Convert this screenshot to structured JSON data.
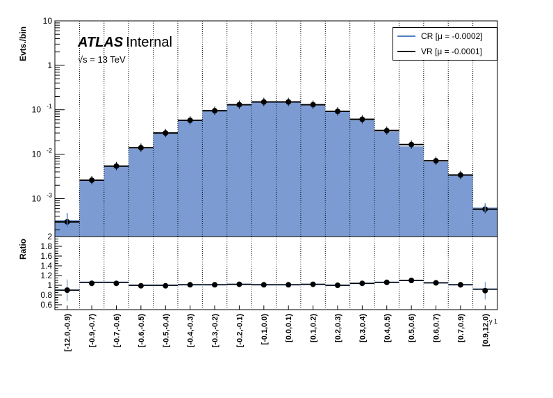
{
  "header": {
    "atlas_label": "ATLAS",
    "status_label": "Internal",
    "energy_label": "√s = 13 TeV"
  },
  "legend": {
    "cr_label": "CR [μ = -0.0002]",
    "vr_label": "VR [μ = -0.0001]",
    "cr_color": "#4f7fbf",
    "vr_color": "#000000"
  },
  "colors": {
    "fill": "#7b9bd2",
    "line": "#000000",
    "cr_error": "#4f7fbf"
  },
  "chart_data": [
    {
      "type": "bar",
      "panel": "main",
      "ylabel": "Evts./bin",
      "ylim": [
        0.00014,
        10
      ],
      "yscale": "log",
      "y_tick_labels": [
        "10",
        "1",
        "10^-1",
        "10^-2",
        "10^-3"
      ],
      "categories": [
        "[-12.0,-0.9)",
        "[-0.9,-0.7)",
        "[-0.7,-0.6)",
        "[-0.6,-0.5)",
        "[-0.5,-0.4)",
        "[-0.4,-0.3)",
        "[-0.3,-0.2)",
        "[-0.2,-0.1)",
        "[-0.1,0.0)",
        "[0.0,0.1)",
        "[0.1,0.2)",
        "[0.2,0.3)",
        "[0.3,0.4)",
        "[0.4,0.5)",
        "[0.5,0.6)",
        "[0.6,0.7)",
        "[0.7,0.9)",
        "[0.9,12.0)"
      ],
      "series": [
        {
          "name": "CR [μ = -0.0002]",
          "values": [
            0.00033,
            0.0025,
            0.0055,
            0.0135,
            0.03,
            0.058,
            0.095,
            0.13,
            0.15,
            0.15,
            0.13,
            0.092,
            0.058,
            0.032,
            0.015,
            0.0067,
            0.0033,
            0.00063
          ]
        },
        {
          "name": "VR [μ = -0.0001]",
          "values": [
            0.0003,
            0.0026,
            0.0054,
            0.014,
            0.03,
            0.058,
            0.095,
            0.13,
            0.15,
            0.15,
            0.13,
            0.092,
            0.061,
            0.034,
            0.0165,
            0.0071,
            0.0034,
            0.00058
          ]
        }
      ],
      "grid": "vertical dotted"
    },
    {
      "type": "scatter",
      "panel": "ratio",
      "ylabel": "Ratio",
      "xlabel": "γ 1",
      "ylim": [
        0.5,
        2
      ],
      "y_tick_labels": [
        "2",
        "1.8",
        "1.6",
        "1.4",
        "1.2",
        "1",
        "0.8",
        "0.6"
      ],
      "categories": [
        "[-12.0,-0.9)",
        "[-0.9,-0.7)",
        "[-0.7,-0.6)",
        "[-0.6,-0.5)",
        "[-0.5,-0.4)",
        "[-0.4,-0.3)",
        "[-0.3,-0.2)",
        "[-0.2,-0.1)",
        "[-0.1,0.0)",
        "[0.0,0.1)",
        "[0.1,0.2)",
        "[0.2,0.3)",
        "[0.3,0.4)",
        "[0.4,0.5)",
        "[0.5,0.6)",
        "[0.6,0.7)",
        "[0.7,0.9)",
        "[0.9,12.0)"
      ],
      "ratio_points": [
        0.9,
        1.04,
        1.04,
        0.99,
        0.99,
        1.01,
        1.01,
        1.02,
        1.01,
        1.01,
        1.02,
        1.0,
        1.04,
        1.06,
        1.1,
        1.05,
        1.01,
        0.89
      ],
      "ratio_line": [
        0.9,
        1.06,
        1.06,
        1.0,
        1.0,
        1.01,
        1.01,
        1.02,
        1.01,
        1.01,
        1.02,
        1.0,
        1.04,
        1.06,
        1.1,
        1.05,
        1.01,
        0.92
      ],
      "ratio_errors": [
        0.22,
        0.06,
        0.04,
        0.03,
        0.02,
        0.02,
        0.02,
        0.02,
        0.02,
        0.02,
        0.02,
        0.02,
        0.02,
        0.03,
        0.04,
        0.05,
        0.06,
        0.18
      ]
    }
  ]
}
